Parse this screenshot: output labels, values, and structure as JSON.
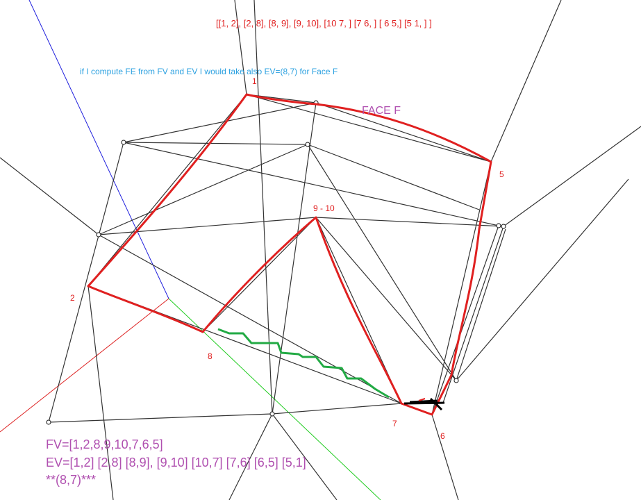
{
  "top_list": "[[1, 2], [2, 8], [8, 9], [9, 10], [10 7, ] [7 6, ] [ 6 5,] [5 1, ] ]",
  "note": "if I compute FE from FV and EV I would take also EV=(8,7) for Face F",
  "face_title": "FACE F",
  "vertex_labels": {
    "v1": "1",
    "v2": "2",
    "v5": "5",
    "v6": "6",
    "v7": "7",
    "v8": "8",
    "v9_10": "9 - 10"
  },
  "fv_line": "FV=[1,2,8,9,10,7,6,5]",
  "ev_line": "EV=[1,2] [2,8] [8,9], [9,10] [10,7] [7,6] [6,5] [5,1]",
  "extra_line": "**(8,7)***",
  "colors": {
    "mesh": "#333333",
    "face_outline": "#e02020",
    "extra_edge": "#22aa44",
    "text_red": "#e02020",
    "text_purple": "#b050b0",
    "text_blue": "#2aa0e0",
    "axis_x": "#dd2020",
    "axis_y": "#20cc20",
    "axis_z": "#2020dd"
  }
}
